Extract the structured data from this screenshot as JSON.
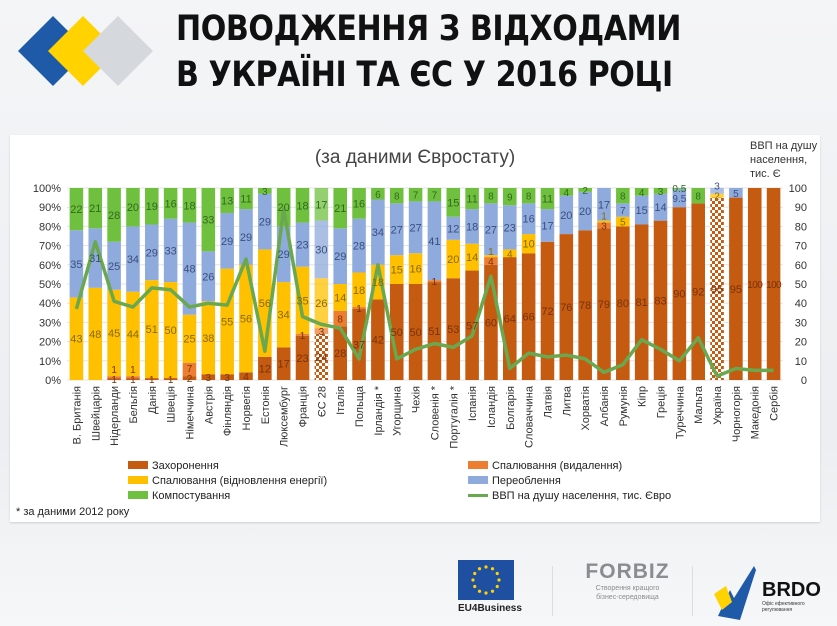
{
  "header": {
    "title_line1": "ПОВОДЖЕННЯ З ВІДХОДАМИ",
    "title_line2": "В УКРАЇНІ ТА ЄС У 2016 РОЦІ"
  },
  "footer": {
    "eu_label": "EU4Business",
    "forbiz_name": "FORBIZ",
    "forbiz_tagline_1": "Створення кращого",
    "forbiz_tagline_2": "бізнес-середовища",
    "brdo_name": "BRDO",
    "brdo_tagline_1": "Офіс ефективного",
    "brdo_tagline_2": "регулювання"
  },
  "chart_data": {
    "type": "bar",
    "stacked": true,
    "subtitle": "(за даними Євростату)",
    "right_axis_label": [
      "ВВП на душу",
      "населення,",
      "тис. Є"
    ],
    "footnote": "* за даними 2012 року",
    "ylim_left": [
      0,
      100
    ],
    "ylim_right": [
      0,
      100
    ],
    "yticks_left": [
      "0%",
      "10%",
      "20%",
      "30%",
      "40%",
      "50%",
      "60%",
      "70%",
      "80%",
      "90%",
      "100%"
    ],
    "yticks_right": [
      "0",
      "10",
      "20",
      "30",
      "40",
      "50",
      "60",
      "70",
      "80",
      "90",
      "100"
    ],
    "grid": true,
    "legend_position": "bottom",
    "categories": [
      "В. Британія",
      "Швейцарія",
      "Нідерланди",
      "Бельгія",
      "Данія",
      "Швеція",
      "Німеччина",
      "Австрія",
      "Фінляндія",
      "Норвегія",
      "Естонія",
      "Люксембург",
      "Франція",
      "ЄС 28",
      "Італія",
      "Польща",
      "Ірландія *",
      "Угорщина",
      "Чехія",
      "Словенія *",
      "Португалія *",
      "Іспанія",
      "Ісландія",
      "Болгарія",
      "Словаччина",
      "Латвія",
      "Литва",
      "Хорватія",
      "Албанія",
      "Румунія",
      "Кіпр",
      "Греція",
      "Туреччина",
      "Мальта",
      "Україна",
      "Чорногорія",
      "Македонія",
      "Сербія"
    ],
    "highlighted": [
      "ЄС 28",
      "Україна"
    ],
    "series": [
      {
        "name": "Захоронення",
        "color": "#c55a11",
        "values": [
          0,
          0,
          1,
          1,
          1,
          1,
          2,
          3,
          3,
          4,
          12,
          17,
          23,
          24,
          28,
          37,
          42,
          50,
          50,
          51,
          53,
          57,
          60,
          64,
          66,
          72,
          76,
          78,
          79,
          80,
          81,
          83,
          90,
          92,
          95,
          95,
          100,
          100
        ]
      },
      {
        "name": "Спалювання (видалення)",
        "color": "#ed7d31",
        "values": [
          0,
          0,
          1,
          1,
          0,
          0,
          7,
          0,
          0,
          0,
          0,
          0,
          1,
          3,
          8,
          1,
          0,
          0,
          0,
          1,
          0,
          0,
          4,
          0,
          0,
          0,
          0,
          0,
          3,
          0,
          0,
          0,
          0,
          0,
          0,
          0,
          0,
          0
        ]
      },
      {
        "name": "Спалювання (відновлення енергії)",
        "color": "#ffc000",
        "values": [
          43,
          48,
          45,
          44,
          51,
          50,
          25,
          38,
          55,
          56,
          56,
          34,
          35,
          26,
          14,
          18,
          18,
          15,
          16,
          0,
          20,
          14,
          1,
          4,
          10,
          0,
          0,
          0,
          1,
          5,
          0,
          0,
          0,
          0,
          2,
          0,
          0,
          0
        ]
      },
      {
        "name": "Переоблення",
        "color": "#8faadc",
        "values": [
          35,
          31,
          25,
          34,
          29,
          33,
          48,
          26,
          29,
          29,
          29,
          29,
          23,
          30,
          29,
          28,
          34,
          27,
          27,
          41,
          12,
          18,
          27,
          23,
          16,
          17,
          20,
          20,
          17,
          7,
          15,
          14,
          9.5,
          0,
          3,
          5,
          0,
          0
        ]
      },
      {
        "name": "Компостування",
        "color": "#70c040",
        "values": [
          22,
          21,
          28,
          20,
          19,
          16,
          18,
          33,
          13,
          11,
          3,
          20,
          18,
          17,
          21,
          16,
          6,
          8,
          7,
          7,
          15,
          11,
          8,
          9,
          8,
          11,
          4,
          2,
          0,
          8,
          4,
          3,
          0.5,
          8,
          0,
          0,
          0,
          0
        ]
      }
    ],
    "line": {
      "name": "ВВП на душу населення, тис. Євро",
      "color": "#6aa84f",
      "axis": "right",
      "values": [
        37,
        72,
        41,
        38,
        48,
        47,
        38,
        40,
        39,
        63,
        15,
        89,
        33,
        29,
        27,
        11,
        60,
        11,
        16,
        19,
        17,
        23,
        54,
        6,
        14,
        12,
        13,
        11,
        4,
        8,
        21,
        16,
        10,
        22,
        2,
        6,
        5,
        5
      ]
    }
  }
}
